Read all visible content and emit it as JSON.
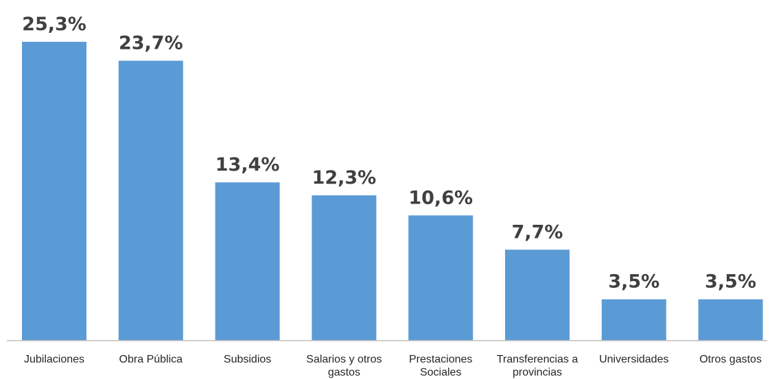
{
  "chart_data": {
    "type": "bar",
    "title": "",
    "xlabel": "",
    "ylabel": "",
    "categories": [
      [
        "Jubilaciones"
      ],
      [
        "Obra Pública"
      ],
      [
        "Subsidios"
      ],
      [
        "Salarios y otros",
        "gastos"
      ],
      [
        "Prestaciones",
        "Sociales"
      ],
      [
        "Transferencias a",
        "provincias"
      ],
      [
        "Universidades"
      ],
      [
        "Otros gastos"
      ]
    ],
    "values": [
      25.3,
      23.7,
      13.4,
      12.3,
      10.6,
      7.7,
      3.5,
      3.5
    ],
    "value_labels": [
      "25,3%",
      "23,7%",
      "13,4%",
      "12,3%",
      "10,6%",
      "7,7%",
      "3,5%",
      "3,5%"
    ],
    "ylim": [
      0,
      25.3
    ],
    "grid": false,
    "legend": "none",
    "bar_color": "#5B9BD5",
    "axis_color": "#BFBFBF"
  }
}
